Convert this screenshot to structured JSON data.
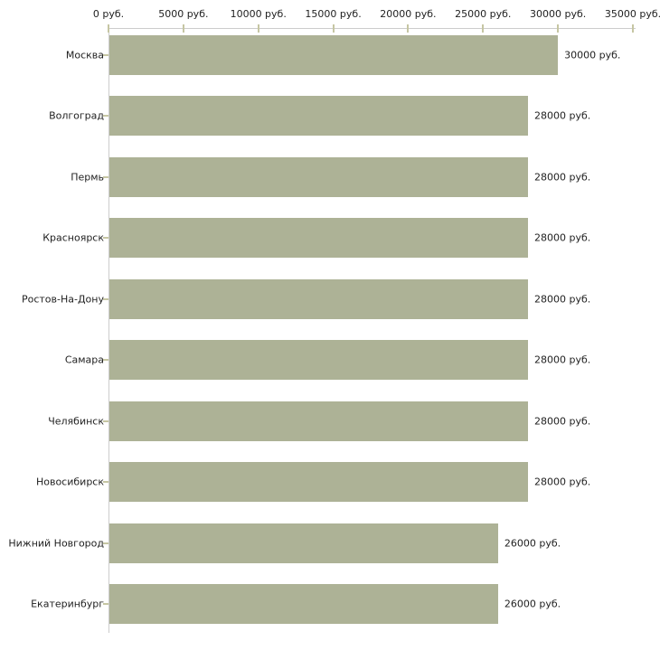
{
  "colors": {
    "background": "#ffffff",
    "bar": "#adb296",
    "axis_line": "#cccccc",
    "tick_mark": "#c6c6a3",
    "text": "#222222"
  },
  "chart_data": {
    "type": "bar",
    "orientation": "horizontal",
    "title": "",
    "unit": "руб.",
    "xlim": [
      0,
      35000
    ],
    "grid": false,
    "legend_position": "none",
    "x_tick_values": [
      0,
      5000,
      10000,
      15000,
      20000,
      25000,
      30000,
      35000
    ],
    "x_tick_labels": [
      "0 руб.",
      "5000 руб.",
      "10000 руб.",
      "15000 руб.",
      "20000 руб.",
      "25000 руб.",
      "30000 руб.",
      "35000 руб."
    ],
    "categories": [
      "Москва",
      "Волгоград",
      "Пермь",
      "Красноярск",
      "Ростов-На-Дону",
      "Самара",
      "Челябинск",
      "Новосибирск",
      "Нижний Новгород",
      "Екатеринбург"
    ],
    "values": [
      30000,
      28000,
      28000,
      28000,
      28000,
      28000,
      28000,
      28000,
      26000,
      26000
    ],
    "value_labels": [
      "30000 руб.",
      "28000 руб.",
      "28000 руб.",
      "28000 руб.",
      "28000 руб.",
      "28000 руб.",
      "28000 руб.",
      "28000 руб.",
      "26000 руб.",
      "26000 руб."
    ]
  }
}
